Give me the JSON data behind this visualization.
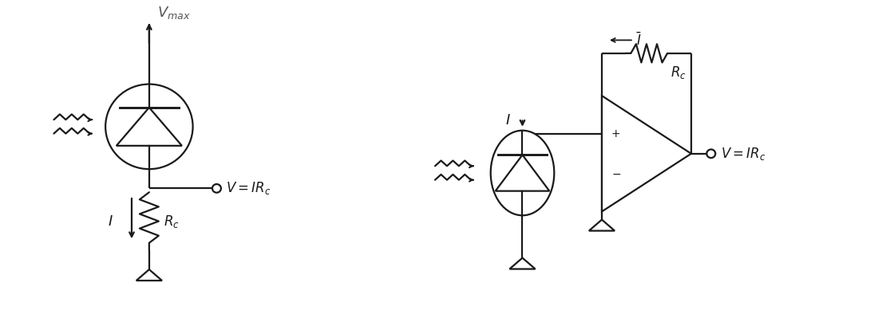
{
  "bg_color": "#ffffff",
  "line_color": "#1a1a1a",
  "line_width": 1.6,
  "fig_width": 11.1,
  "fig_height": 3.99,
  "dpi": 100
}
